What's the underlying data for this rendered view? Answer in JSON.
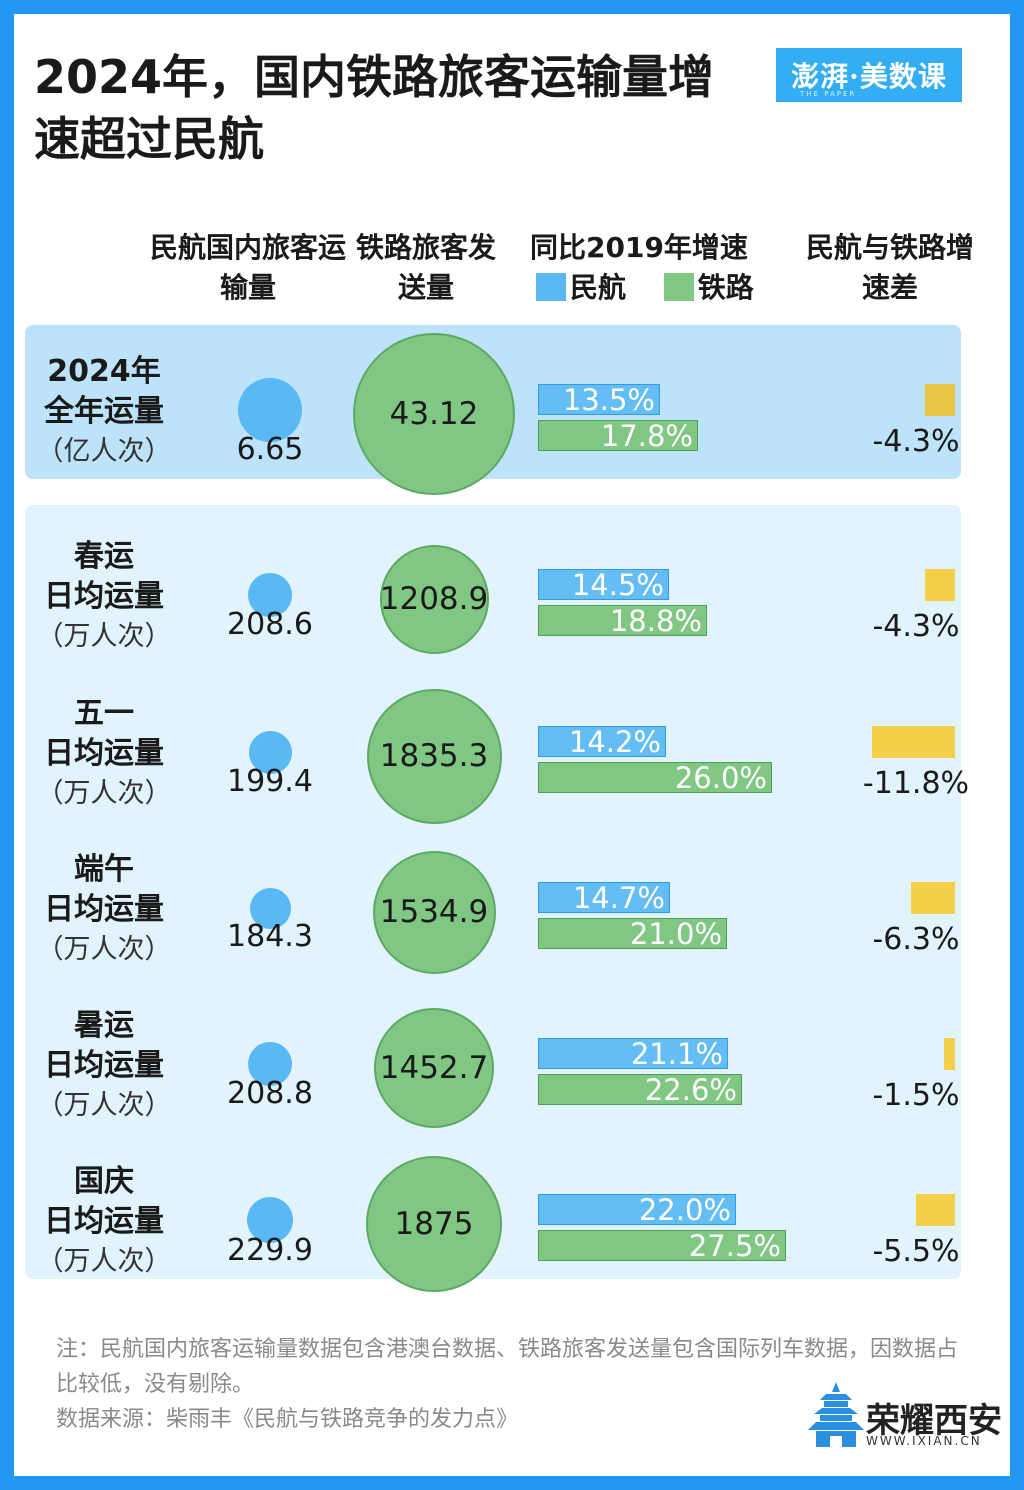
{
  "title": "2024年，国内铁路旅客运输量增速超过民航",
  "logo": {
    "text": "澎湃·美数课",
    "sub": "THE PAPER"
  },
  "headers": {
    "air_volume": "民航国内旅客运输量",
    "rail_volume": "铁路旅客发送量",
    "yoy": "同比2019年增速",
    "legend_air": "民航",
    "legend_rail": "铁路",
    "diff": "民航与铁路增速差"
  },
  "colors": {
    "air": "#5ab8f5",
    "rail": "#80c784",
    "diff_dark": "#e8c545",
    "diff": "#f5cf4a",
    "background": "#2196f3"
  },
  "chart_data": {
    "type": "table",
    "rows": [
      {
        "label_line1": "2024年",
        "label_line2": "全年运量",
        "unit": "（亿人次）",
        "air_volume": "6.65",
        "rail_volume": "43.12",
        "air_growth": 13.5,
        "air_growth_label": "13.5%",
        "rail_growth": 17.8,
        "rail_growth_label": "17.8%",
        "diff": -4.3,
        "diff_label": "-4.3%"
      },
      {
        "label_line1": "春运",
        "label_line2": "日均运量",
        "unit": "（万人次）",
        "air_volume": "208.6",
        "rail_volume": "1208.9",
        "air_growth": 14.5,
        "air_growth_label": "14.5%",
        "rail_growth": 18.8,
        "rail_growth_label": "18.8%",
        "diff": -4.3,
        "diff_label": "-4.3%"
      },
      {
        "label_line1": "五一",
        "label_line2": "日均运量",
        "unit": "（万人次）",
        "air_volume": "199.4",
        "rail_volume": "1835.3",
        "air_growth": 14.2,
        "air_growth_label": "14.2%",
        "rail_growth": 26.0,
        "rail_growth_label": "26.0%",
        "diff": -11.8,
        "diff_label": "-11.8%"
      },
      {
        "label_line1": "端午",
        "label_line2": "日均运量",
        "unit": "（万人次）",
        "air_volume": "184.3",
        "rail_volume": "1534.9",
        "air_growth": 14.7,
        "air_growth_label": "14.7%",
        "rail_growth": 21.0,
        "rail_growth_label": "21.0%",
        "diff": -6.3,
        "diff_label": "-6.3%"
      },
      {
        "label_line1": "暑运",
        "label_line2": "日均运量",
        "unit": "（万人次）",
        "air_volume": "208.8",
        "rail_volume": "1452.7",
        "air_growth": 21.1,
        "air_growth_label": "21.1%",
        "rail_growth": 22.6,
        "rail_growth_label": "22.6%",
        "diff": -1.5,
        "diff_label": "-1.5%"
      },
      {
        "label_line1": "国庆",
        "label_line2": "日均运量",
        "unit": "（万人次）",
        "air_volume": "229.9",
        "rail_volume": "1875",
        "air_growth": 22.0,
        "air_growth_label": "22.0%",
        "rail_growth": 27.5,
        "rail_growth_label": "27.5%",
        "diff": -5.5,
        "diff_label": "-5.5%"
      }
    ]
  },
  "note": "注：民航国内旅客运输量数据包含港澳台数据、铁路旅客发送量包含国际列车数据，因数据占比较低，没有剔除。",
  "source": "数据来源：柴雨丰《民航与铁路竞争的发力点》",
  "brand": {
    "name": "荣耀西安",
    "url": "WWW.IXIAN.CN"
  }
}
